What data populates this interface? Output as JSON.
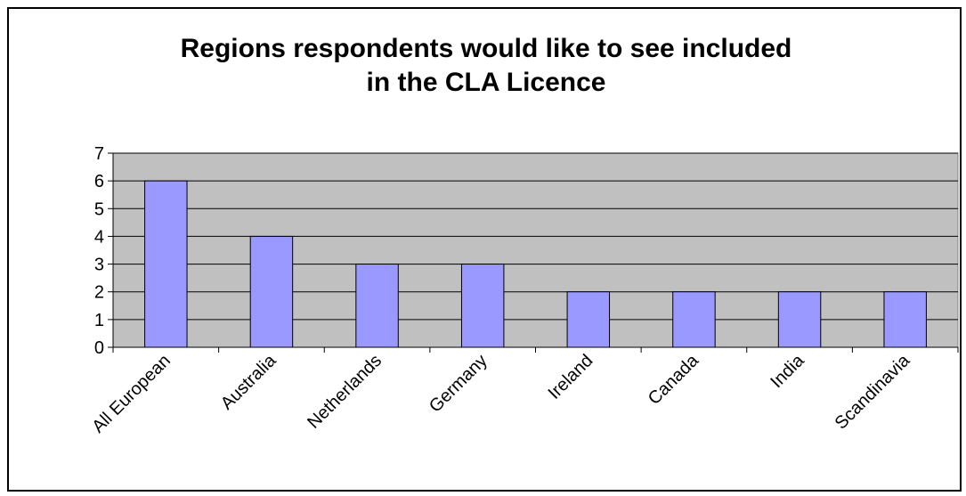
{
  "chart_data": {
    "type": "bar",
    "title_lines": [
      "Regions respondents would like to see included",
      "in the CLA Licence"
    ],
    "categories": [
      "All European",
      "Australia",
      "Netherlands",
      "Germany",
      "Ireland",
      "Canada",
      "India",
      "Scandinavia"
    ],
    "values": [
      6,
      4,
      3,
      3,
      2,
      2,
      2,
      2
    ],
    "ylim": [
      0,
      7
    ],
    "yticks": [
      0,
      1,
      2,
      3,
      4,
      5,
      6,
      7
    ],
    "grid": true,
    "legend": "none",
    "colors": {
      "bar_fill": "#9999ff",
      "plot_background": "#c0c0c0",
      "gridline": "#000000"
    }
  }
}
